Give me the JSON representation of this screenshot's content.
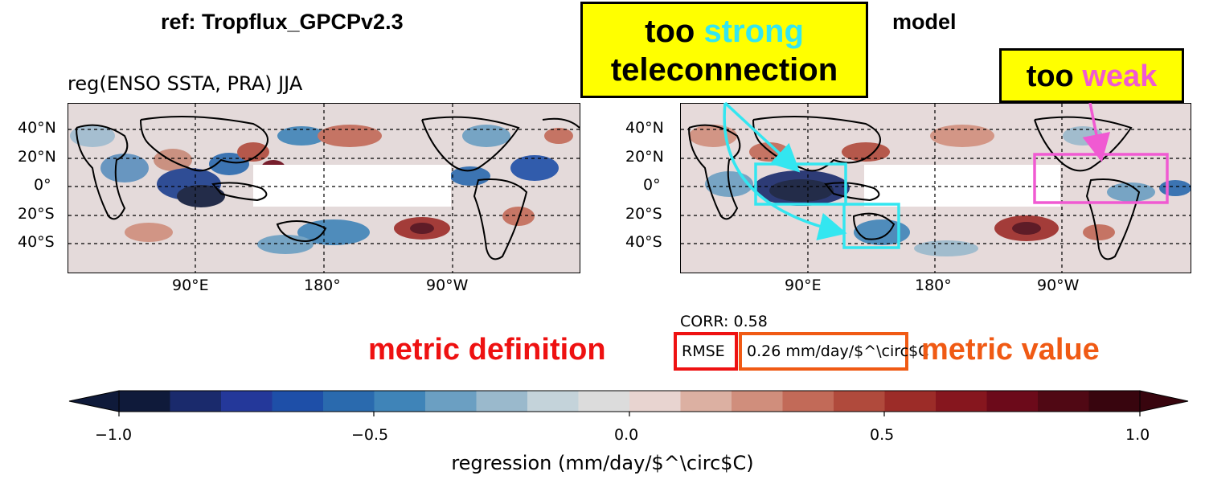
{
  "titles": {
    "ref": "ref: Tropflux_GPCPv2.3",
    "model": "model",
    "subtitle": "reg(ENSO SSTA, PRA) JJA"
  },
  "lat_ticks": [
    "40°N",
    "20°N",
    "0°",
    "20°S",
    "40°S"
  ],
  "lon_ticks": [
    "90°E",
    "180°",
    "90°W"
  ],
  "callouts": {
    "strong_a": "too ",
    "strong_b": "strong",
    "strong_c": "teleconnection",
    "weak_a": "too ",
    "weak_b": "weak"
  },
  "metrics": {
    "corr": "CORR: 0.58",
    "rmse_label": "RMSE",
    "rmse_value": "0.26 mm/day/$^\\circ$C",
    "definition_label": "metric definition",
    "value_label": "metric value"
  },
  "colorbar": {
    "label": "regression (mm/day/$^\\circ$C)",
    "ticks": [
      "−1.0",
      "−0.5",
      "0.0",
      "0.5",
      "1.0"
    ],
    "colors": [
      "#0f1a3a",
      "#1a2a6c",
      "#24389a",
      "#1e4fa8",
      "#2a6aae",
      "#3f84b8",
      "#6b9fc2",
      "#9ab9cc",
      "#c4d3da",
      "#dcdcdc",
      "#e8d4d0",
      "#dcb0a2",
      "#d08e7c",
      "#c26a58",
      "#b04a3c",
      "#9c2c28",
      "#86161e",
      "#6c0a1a",
      "#500814",
      "#38050e"
    ]
  },
  "colors": {
    "callout_bg": "#ffff00",
    "cyan": "#33e6f0",
    "magenta": "#f05ad2",
    "red": "#ee1111",
    "orange": "#f05a14"
  }
}
